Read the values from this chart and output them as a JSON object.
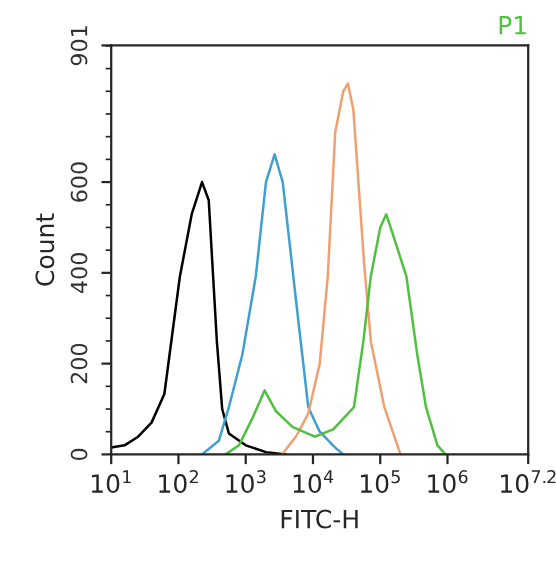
{
  "chart_data": {
    "type": "line",
    "title": "P1",
    "xlabel": "FITC-H",
    "ylabel": "Count",
    "log": "x",
    "xlim": [
      10,
      15848932
    ],
    "xticks": [
      {
        "value": 10,
        "label": "10$^{1}$"
      },
      {
        "value": 100,
        "label": "10$^{2}$"
      },
      {
        "value": 1000,
        "label": "10$^{3}$"
      },
      {
        "value": 10000,
        "label": "10$^{4}$"
      },
      {
        "value": 100000,
        "label": "10$^{5}$"
      },
      {
        "value": 1000000,
        "label": "10$^{6}$"
      },
      {
        "value": 15848932,
        "label": "10$^{7.2}$"
      }
    ],
    "ylim": [
      0,
      901
    ],
    "yticks": [
      0,
      200,
      400,
      600,
      901
    ],
    "grid": false,
    "legend": false,
    "marker": "none",
    "line_style": "solid",
    "series": [
      {
        "color": "#000000",
        "x": [
          10,
          15.8,
          25.1,
          39.8,
          61.7,
          105,
          158,
          224,
          282,
          372,
          447,
          562,
          1000,
          2000,
          3980
        ],
        "values": [
          15,
          20,
          39,
          70,
          133,
          392,
          530,
          600,
          560,
          250,
          100,
          46,
          20,
          5,
          0
        ]
      },
      {
        "color": "#3fa0d0",
        "x": [
          224,
          398,
          562,
          891,
          1410,
          2000,
          2690,
          3550,
          5500,
          8510,
          12600,
          21400,
          28200
        ],
        "values": [
          0,
          30,
          104,
          220,
          392,
          600,
          661,
          600,
          349,
          104,
          50,
          15,
          0
        ]
      },
      {
        "color": "#f0a070",
        "x": [
          3470,
          5620,
          8510,
          12600,
          16600,
          21400,
          28200,
          33100,
          39800,
          57500,
          72400,
          115000,
          200000
        ],
        "values": [
          0,
          40,
          90,
          200,
          392,
          709,
          800,
          817,
          760,
          422,
          250,
          104,
          0
        ]
      },
      {
        "color": "#50c040",
        "x": [
          501,
          794,
          1260,
          1910,
          2820,
          5010,
          10700,
          20000,
          40700,
          56200,
          72400,
          100000,
          123000,
          158000,
          245000,
          355000,
          479000,
          708000,
          933000
        ],
        "values": [
          0,
          20,
          80,
          141,
          95,
          60,
          39,
          55,
          104,
          250,
          392,
          500,
          529,
          480,
          392,
          220,
          104,
          20,
          0
        ]
      }
    ]
  }
}
